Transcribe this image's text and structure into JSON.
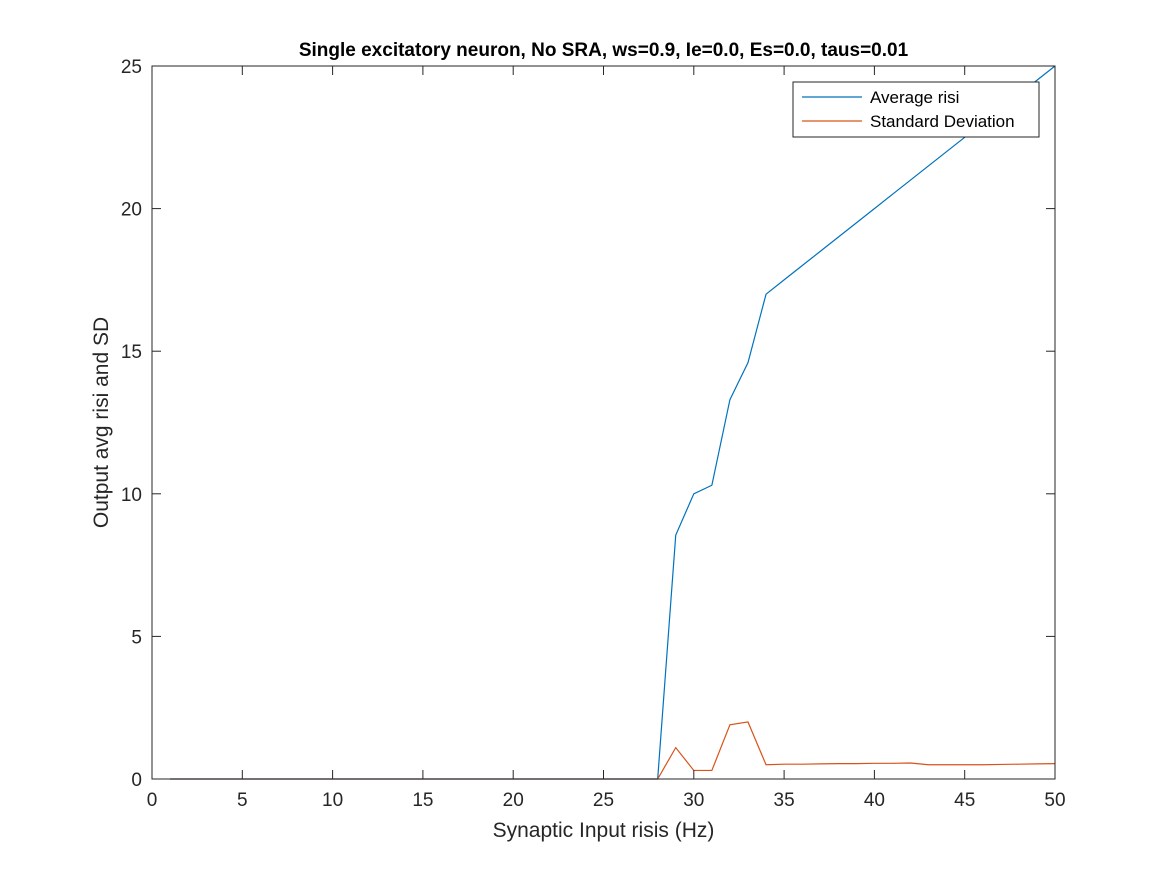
{
  "chart_data": {
    "type": "line",
    "title": "Single excitatory neuron, No SRA, ws=0.9, Ie=0.0, Es=0.0, taus=0.01",
    "xlabel": "Synaptic Input risis (Hz)",
    "ylabel": "Output avg risi and SD",
    "xlim": [
      0,
      50
    ],
    "ylim": [
      0,
      25
    ],
    "xticks": [
      0,
      5,
      10,
      15,
      20,
      25,
      30,
      35,
      40,
      45,
      50
    ],
    "yticks": [
      0,
      5,
      10,
      15,
      20,
      25
    ],
    "grid": false,
    "legend_position": "top-right",
    "x": [
      1,
      2,
      3,
      4,
      5,
      6,
      7,
      8,
      9,
      10,
      11,
      12,
      13,
      14,
      15,
      16,
      17,
      18,
      19,
      20,
      21,
      22,
      23,
      24,
      25,
      26,
      27,
      28,
      29,
      30,
      31,
      32,
      33,
      34,
      35,
      36,
      37,
      38,
      39,
      40,
      41,
      42,
      43,
      44,
      45,
      46,
      47,
      48,
      49,
      50
    ],
    "series": [
      {
        "name": "Average risi",
        "color": "#0072BD",
        "values": [
          0,
          0,
          0,
          0,
          0,
          0,
          0,
          0,
          0,
          0,
          0,
          0,
          0,
          0,
          0,
          0,
          0,
          0,
          0,
          0,
          0,
          0,
          0,
          0,
          0,
          0,
          0,
          0,
          8.55,
          10.0,
          10.3,
          13.3,
          14.6,
          17.0,
          17.5,
          18.0,
          18.5,
          19.0,
          19.5,
          20.0,
          20.5,
          21.0,
          21.5,
          22.0,
          22.5,
          23.0,
          23.5,
          24.0,
          24.5,
          25.0
        ]
      },
      {
        "name": "Standard Deviation",
        "color": "#D95319",
        "values": [
          0,
          0,
          0,
          0,
          0,
          0,
          0,
          0,
          0,
          0,
          0,
          0,
          0,
          0,
          0,
          0,
          0,
          0,
          0,
          0,
          0,
          0,
          0,
          0,
          0,
          0,
          0,
          0,
          1.1,
          0.3,
          0.3,
          1.9,
          2.0,
          0.5,
          0.52,
          0.52,
          0.53,
          0.54,
          0.54,
          0.55,
          0.55,
          0.56,
          0.5,
          0.5,
          0.5,
          0.5,
          0.51,
          0.52,
          0.53,
          0.54
        ]
      }
    ]
  }
}
